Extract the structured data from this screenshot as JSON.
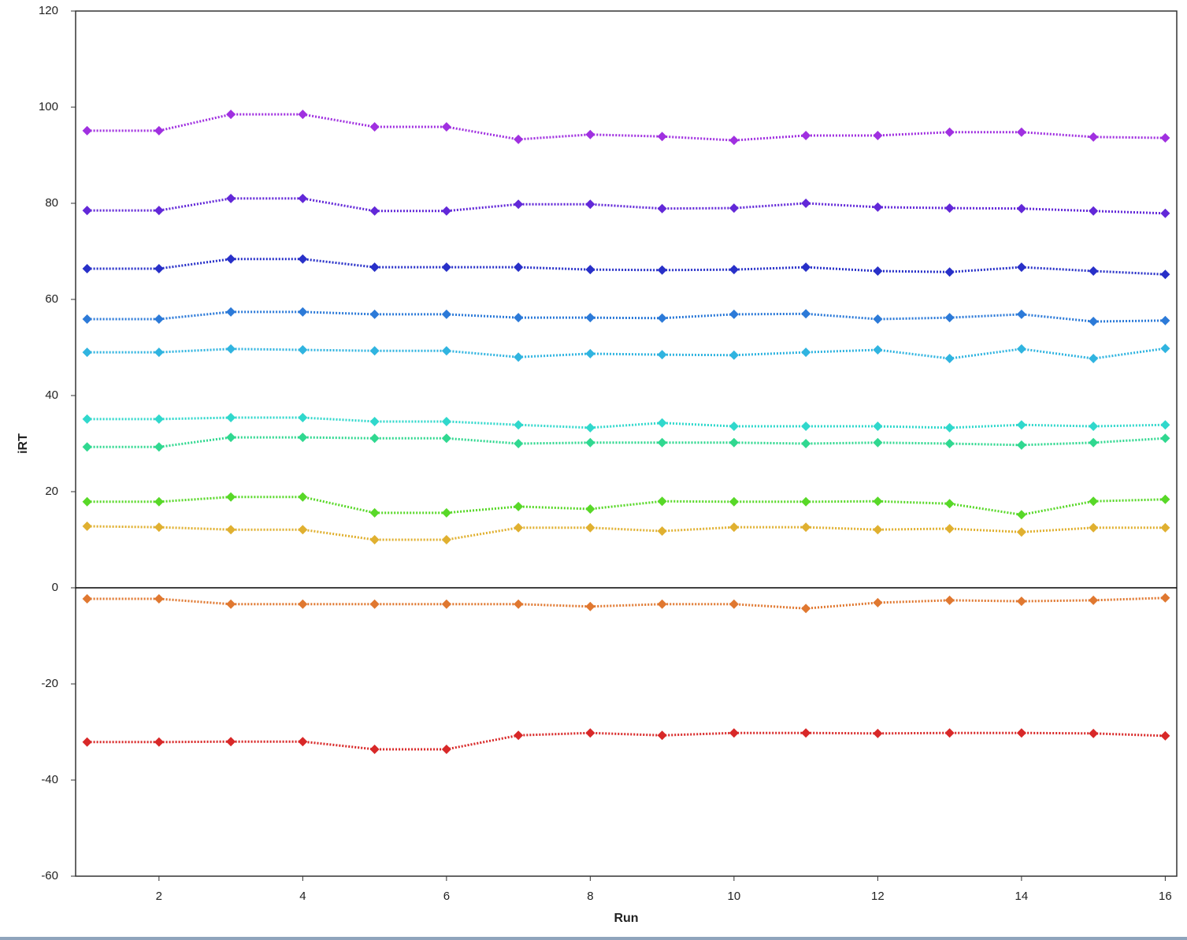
{
  "chart_data": {
    "type": "line",
    "x_label": "Run",
    "y_label": "iRT",
    "x": [
      1,
      2,
      3,
      4,
      5,
      6,
      7,
      8,
      9,
      10,
      11,
      12,
      13,
      14,
      15,
      16
    ],
    "xlim": [
      0.84,
      16.16
    ],
    "xticks": [
      2,
      4,
      6,
      8,
      10,
      12,
      14,
      16
    ],
    "ylim": [
      -60,
      120
    ],
    "yticks": [
      -60,
      -40,
      -20,
      0,
      20,
      40,
      60,
      80,
      100,
      120
    ],
    "series": [
      {
        "color": "#a030e0",
        "values": [
          95.1,
          95.1,
          98.5,
          98.5,
          95.9,
          95.9,
          93.3,
          94.3,
          93.9,
          93.1,
          94.1,
          94.1,
          94.8,
          94.8,
          93.8,
          93.6
        ]
      },
      {
        "color": "#6228d8",
        "values": [
          78.5,
          78.5,
          81,
          81,
          78.4,
          78.4,
          79.8,
          79.8,
          78.9,
          79,
          80,
          79.2,
          79,
          78.9,
          78.4,
          77.9
        ]
      },
      {
        "color": "#2830c8",
        "values": [
          66.4,
          66.4,
          68.4,
          68.4,
          66.7,
          66.7,
          66.7,
          66.2,
          66.1,
          66.2,
          66.7,
          65.9,
          65.7,
          66.7,
          65.9,
          65.2
        ]
      },
      {
        "color": "#2c7ad8",
        "values": [
          55.9,
          55.9,
          57.4,
          57.4,
          56.9,
          56.9,
          56.2,
          56.2,
          56.1,
          56.9,
          57,
          55.9,
          56.2,
          56.9,
          55.4,
          55.6
        ]
      },
      {
        "color": "#30b4e0",
        "values": [
          49,
          49,
          49.7,
          49.5,
          49.3,
          49.3,
          48,
          48.7,
          48.5,
          48.4,
          49,
          49.5,
          47.7,
          49.7,
          47.7,
          49.8
        ]
      },
      {
        "color": "#30d8cc",
        "values": [
          35.1,
          35.1,
          35.4,
          35.4,
          34.6,
          34.6,
          33.9,
          33.3,
          34.3,
          33.6,
          33.6,
          33.6,
          33.3,
          33.9,
          33.6,
          33.9
        ]
      },
      {
        "color": "#30d890",
        "values": [
          29.3,
          29.3,
          31.3,
          31.3,
          31.1,
          31.1,
          30,
          30.2,
          30.2,
          30.2,
          30,
          30.2,
          30,
          29.7,
          30.2,
          31.1
        ]
      },
      {
        "color": "#58d828",
        "values": [
          17.9,
          17.9,
          18.9,
          18.9,
          15.6,
          15.6,
          16.9,
          16.4,
          18,
          17.9,
          17.9,
          18,
          17.5,
          15.2,
          18,
          18.4
        ]
      },
      {
        "color": "#e0b030",
        "values": [
          12.8,
          12.6,
          12.1,
          12.1,
          10,
          10,
          12.5,
          12.5,
          11.8,
          12.6,
          12.6,
          12.1,
          12.3,
          11.6,
          12.5,
          12.5
        ]
      },
      {
        "color": "#e07830",
        "values": [
          -2.3,
          -2.3,
          -3.4,
          -3.4,
          -3.4,
          -3.4,
          -3.4,
          -3.9,
          -3.4,
          -3.4,
          -4.3,
          -3.1,
          -2.6,
          -2.8,
          -2.6,
          -2.1
        ]
      },
      {
        "color": "#d82828",
        "values": [
          -32.1,
          -32.1,
          -32,
          -32,
          -33.6,
          -33.6,
          -30.7,
          -30.2,
          -30.7,
          -30.2,
          -30.2,
          -30.3,
          -30.2,
          -30.2,
          -30.3,
          -30.8
        ]
      }
    ]
  }
}
